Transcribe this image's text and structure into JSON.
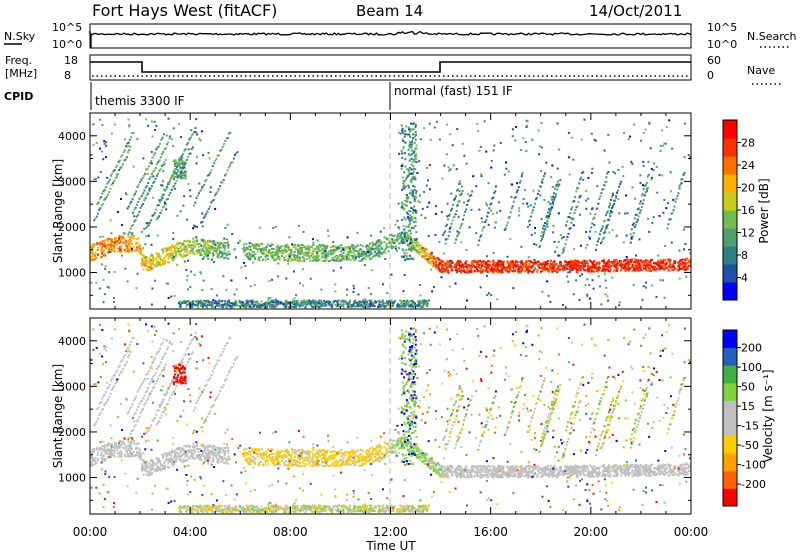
{
  "header": {
    "title": "Fort Hays West (fitACF)",
    "beam": "Beam 14",
    "date": "14/Oct/2011"
  },
  "strips": {
    "nsky_label": "N.Sky",
    "nsky_ticks": [
      "10^5",
      "10^0"
    ],
    "nsearch_label": "N.Search",
    "freq_label_1": "Freq.",
    "freq_label_2": "[MHz]",
    "freq_ticks": [
      "18",
      "8"
    ],
    "nave_label": "Nave",
    "nave_ticks": [
      "60",
      "0"
    ],
    "cpid_label": "CPID",
    "cpid_segments": [
      "themis 3300 IF",
      "normal (fast) 151 IF"
    ]
  },
  "colors": {
    "power": [
      "#0000ff",
      "#1f4fa8",
      "#2f7f87",
      "#4f9f6f",
      "#6fbf4f",
      "#c8cc1a",
      "#ffb000",
      "#ff7000",
      "#ff3000",
      "#ff0000"
    ],
    "velocity": [
      "#ff0000",
      "#ff6000",
      "#ffa000",
      "#ffcc00",
      "#c0c0c0",
      "#c0c0c0",
      "#80d040",
      "#40b040",
      "#2060c0",
      "#0000ff"
    ],
    "panel_border": "#000000",
    "gray_series": "#c0c0c0"
  },
  "chart_data": [
    {
      "type": "heatmap",
      "title": "",
      "xlabel": "Time UT",
      "ylabel": "Slant Range [km]",
      "x_ticks": [
        "00:00",
        "04:00",
        "08:00",
        "12:00",
        "16:00",
        "20:00",
        "00:00"
      ],
      "xlim_hours": [
        0,
        24
      ],
      "ylim": [
        200,
        4500
      ],
      "y_ticks": [
        "1000",
        "2000",
        "3000",
        "4000"
      ],
      "colorbar_label": "Power [dB]",
      "colorbar_ticks": [
        "28",
        "24",
        "20",
        "16",
        "12",
        "8",
        "4"
      ],
      "colorbar_range": [
        0,
        32
      ],
      "dominant_echo": [
        {
          "t": 0.0,
          "range": 1450,
          "power": 22
        },
        {
          "t": 1.0,
          "range": 1650,
          "power": 24
        },
        {
          "t": 1.9,
          "range": 1650,
          "power": 20
        },
        {
          "t": 2.1,
          "range": 1200,
          "power": 20
        },
        {
          "t": 4.0,
          "range": 1600,
          "power": 16
        },
        {
          "t": 5.5,
          "range": 1500,
          "power": 12
        },
        {
          "t": 8.0,
          "range": 1450,
          "power": 14
        },
        {
          "t": 11.0,
          "range": 1450,
          "power": 12
        },
        {
          "t": 12.5,
          "range": 1800,
          "power": 12
        },
        {
          "t": 14.0,
          "range": 1150,
          "power": 28
        },
        {
          "t": 18.0,
          "range": 1150,
          "power": 28
        },
        {
          "t": 24.0,
          "range": 1200,
          "power": 28
        }
      ]
    },
    {
      "type": "heatmap",
      "title": "",
      "xlabel": "Time UT",
      "ylabel": "Slant Range [km]",
      "x_ticks": [
        "00:00",
        "04:00",
        "08:00",
        "12:00",
        "16:00",
        "20:00",
        "00:00"
      ],
      "xlim_hours": [
        0,
        24
      ],
      "ylim": [
        200,
        4500
      ],
      "y_ticks": [
        "1000",
        "2000",
        "3000",
        "4000"
      ],
      "colorbar_label": "Velocity [m s⁻¹]",
      "colorbar_ticks": [
        "200",
        "100",
        "50",
        "15",
        "-15",
        "-50",
        "-100",
        "-200"
      ],
      "colorbar_range": [
        -250,
        250
      ]
    }
  ]
}
